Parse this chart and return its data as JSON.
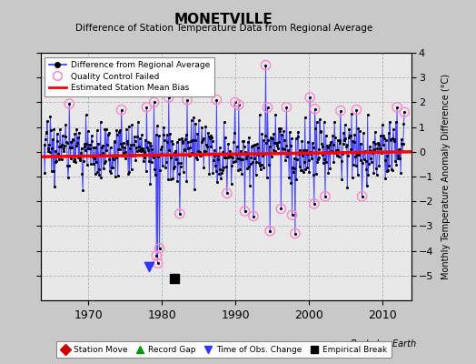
{
  "title": "MONETVILLE",
  "subtitle": "Difference of Station Temperature Data from Regional Average",
  "ylabel": "Monthly Temperature Anomaly Difference (°C)",
  "credit": "Berkeley Earth",
  "xlim": [
    1963.5,
    2014.0
  ],
  "ylim": [
    -6,
    4
  ],
  "yticks": [
    -5,
    -4,
    -3,
    -2,
    -1,
    0,
    1,
    2,
    3,
    4
  ],
  "xticks": [
    1970,
    1980,
    1990,
    2000,
    2010
  ],
  "fig_bg_color": "#c8c8c8",
  "plot_bg_color": "#e8e8e8",
  "grid_color": "#b0b0b8",
  "bias_value": -0.12,
  "seed": 17,
  "n_points": 588,
  "start_year": 1964.0,
  "end_year": 2013.0,
  "line_color": "#3333ff",
  "dot_color": "#000000",
  "qc_color": "#ff88cc",
  "bias_color": "#ff0000",
  "obs_change_x": 1978.3,
  "obs_change_y": -4.65,
  "empirical_break_x": 1981.7,
  "empirical_break_y": -5.1,
  "legend1_items": [
    "Difference from Regional Average",
    "Quality Control Failed",
    "Estimated Station Mean Bias"
  ],
  "legend2_items": [
    "Station Move",
    "Record Gap",
    "Time of Obs. Change",
    "Empirical Break"
  ],
  "legend2_colors": [
    "#cc0000",
    "#009900",
    "#3333ff",
    "#000000"
  ]
}
